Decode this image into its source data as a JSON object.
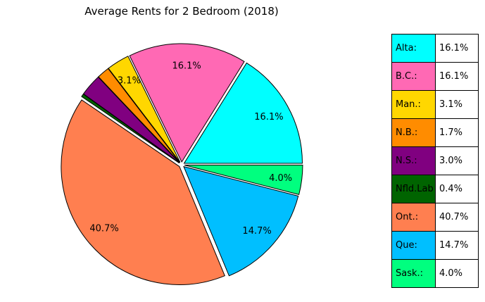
{
  "chart_data": {
    "type": "pie",
    "title": "Average Rents for 2 Bedroom (2018)",
    "slices": [
      {
        "name": "Alta:",
        "value": 16.1,
        "label": "16.1%",
        "color": "#00FFFF"
      },
      {
        "name": "B.C.:",
        "value": 16.1,
        "label": "16.1%",
        "color": "#FF69B4"
      },
      {
        "name": "Man.:",
        "value": 3.1,
        "label": "3.1%",
        "color": "#FFD700"
      },
      {
        "name": "N.B.:",
        "value": 1.7,
        "label": "1.7%",
        "color": "#FF8C00"
      },
      {
        "name": "N.S.:",
        "value": 3.0,
        "label": "3.0%",
        "color": "#800080"
      },
      {
        "name": "Nfld.Lab",
        "value": 0.4,
        "label": "0.4%",
        "color": "#006400"
      },
      {
        "name": "Ont.:",
        "value": 40.7,
        "label": "40.7%",
        "color": "#FF7F50"
      },
      {
        "name": "Que:",
        "value": 14.7,
        "label": "14.7%",
        "color": "#00BFFF"
      },
      {
        "name": "Sask.:",
        "value": 4.0,
        "label": "4.0%",
        "color": "#00FF7F"
      }
    ],
    "visible_pie_labels": [
      "16.1%",
      "16.1%",
      "3.1%",
      "",
      "",
      "",
      "40.7%",
      "14.7%",
      "4.0%"
    ],
    "legend_placement": "right (table)"
  }
}
